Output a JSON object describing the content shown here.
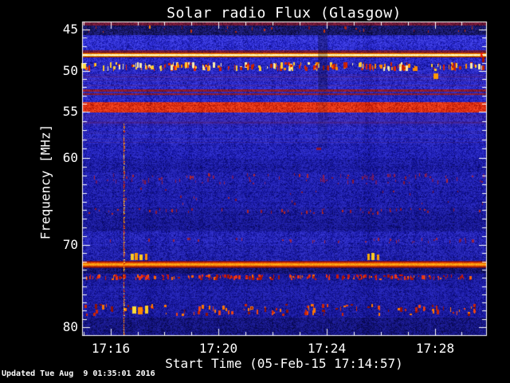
{
  "window": {
    "background": "#000000",
    "foreground": "#ffffff"
  },
  "footer": {
    "updated": "Updated Tue Aug  9 01:35:01 2016"
  },
  "chart_data": {
    "type": "heatmap",
    "title": "Solar radio Flux (Glasgow)",
    "xlabel": "Start Time (05-Feb-15 17:14:57)",
    "ylabel": "Frequency [MHz]",
    "observatory": "Glasgow",
    "time_axis": {
      "date": "05-Feb-15",
      "start": "17:14:57",
      "total_seconds": 897,
      "minor_tick_seconds": 60
    },
    "x_ticks": [
      {
        "label": "17:16",
        "sec": 63
      },
      {
        "label": "17:20",
        "sec": 303
      },
      {
        "label": "17:24",
        "sec": 543
      },
      {
        "label": "17:28",
        "sec": 783
      }
    ],
    "y_ticks": [
      45,
      50,
      55,
      60,
      70,
      80
    ],
    "y_minor_mhz": 1,
    "y_map": [
      [
        44.1,
        27
      ],
      [
        45,
        37
      ],
      [
        50,
        89
      ],
      [
        55,
        140
      ],
      [
        60,
        198
      ],
      [
        70,
        307
      ],
      [
        80,
        410
      ],
      [
        81,
        420
      ]
    ],
    "axis_color": "#ffffff",
    "zones": [
      {
        "f0": 44.0,
        "f1": 44.55,
        "style": "noise",
        "base": "#4e0e2a",
        "hi": "#8a2040",
        "dark": "#160408"
      },
      {
        "f0": 44.55,
        "f1": 45.65,
        "style": "noise",
        "base": "#0a0a40",
        "hi": "#24248c",
        "dark": "#020210"
      },
      {
        "f0": 45.65,
        "f1": 47.5,
        "style": "noise",
        "base": "#1818b6",
        "hi": "#4444ea",
        "dark": "#060634"
      },
      {
        "f0": 47.5,
        "f1": 47.82,
        "style": "noise",
        "base": "#5a1232",
        "hi": "#8c2440",
        "dark": "#1a1048"
      },
      {
        "f0": 47.82,
        "f1": 48.38,
        "style": "line",
        "stops": [
          "#b33000",
          "#ff9900",
          "#fffdd8",
          "#fffab8",
          "#ff9900",
          "#7a1208"
        ]
      },
      {
        "f0": 48.38,
        "f1": 48.92,
        "style": "noise",
        "base": "#1414ac",
        "hi": "#3c3ce2",
        "dark": "#060630"
      },
      {
        "f0": 48.92,
        "f1": 50.15,
        "style": "noise",
        "base": "#1212a4",
        "hi": "#3a3ada",
        "dark": "#05052a"
      },
      {
        "f0": 50.15,
        "f1": 52.25,
        "style": "noise",
        "base": "#1616b2",
        "hi": "#4040e6",
        "dark": "#060630",
        "stripe": "#6e1230",
        "stripe_strength": 0.3
      },
      {
        "f0": 52.25,
        "f1": 53.1,
        "style": "maroon",
        "base": "#741228",
        "hi": "#a02438",
        "dark": "#3c0a18",
        "base2": "#1c1694",
        "hi2": "#3a36cc",
        "dark2": "#0a0a40"
      },
      {
        "f0": 53.1,
        "f1": 53.78,
        "style": "noise",
        "base": "#1414ae",
        "hi": "#3a3ade",
        "dark": "#050528"
      },
      {
        "f0": 53.78,
        "f1": 55.1,
        "style": "noise",
        "base": "#c41a06",
        "hi": "#f64822",
        "dark": "#6e0a06"
      },
      {
        "f0": 55.1,
        "f1": 56.35,
        "style": "noise",
        "base": "#1616b0",
        "hi": "#3e3ee2",
        "dark": "#060630",
        "stripe": "#74142e",
        "stripe_strength": 0.35
      },
      {
        "f0": 56.35,
        "f1": 58.45,
        "style": "noise",
        "base": "#1414aa",
        "hi": "#3a3ad8",
        "dark": "#05052a",
        "stripe": "#5c1226",
        "stripe_strength": 0.25
      },
      {
        "f0": 58.45,
        "f1": 60.05,
        "style": "noise",
        "base": "#10109c",
        "hi": "#3232d0",
        "dark": "#040422"
      },
      {
        "f0": 60.05,
        "f1": 61.65,
        "style": "noise",
        "base": "#0d0d8a",
        "hi": "#2a2abe",
        "dark": "#04041a"
      },
      {
        "f0": 61.65,
        "f1": 63.25,
        "style": "noise",
        "base": "#0f0f94",
        "hi": "#2e2ec6",
        "dark": "#040420"
      },
      {
        "f0": 63.25,
        "f1": 65.65,
        "style": "noise",
        "base": "#0e0e90",
        "hi": "#2c2cc2",
        "dark": "#03031c"
      },
      {
        "f0": 65.65,
        "f1": 67.05,
        "style": "noise",
        "base": "#0c0c82",
        "hi": "#2828b6",
        "dark": "#030318"
      },
      {
        "f0": 67.05,
        "f1": 68.45,
        "style": "noise",
        "base": "#0b0b7a",
        "hi": "#2424ae",
        "dark": "#030314"
      },
      {
        "f0": 68.45,
        "f1": 70.05,
        "style": "noise",
        "base": "#10109a",
        "hi": "#3434ce",
        "dark": "#040424"
      },
      {
        "f0": 70.05,
        "f1": 71.9,
        "style": "noise",
        "base": "#0f0f92",
        "hi": "#3030c4",
        "dark": "#040420"
      },
      {
        "f0": 71.9,
        "f1": 72.78,
        "style": "line",
        "stops": [
          "#6e1026",
          "#cc2200",
          "#ff8800",
          "#ffaa22",
          "#ff7700",
          "#b01a00",
          "#581026"
        ]
      },
      {
        "f0": 72.78,
        "f1": 73.5,
        "style": "noise",
        "base": "#08084e",
        "hi": "#1e1e94",
        "dark": "#020212"
      },
      {
        "f0": 73.5,
        "f1": 74.45,
        "style": "noise",
        "base": "#0d0d84",
        "hi": "#2626b2",
        "dark": "#030316"
      },
      {
        "f0": 74.45,
        "f1": 77.15,
        "style": "noise",
        "base": "#0e0e8a",
        "hi": "#2a2abe",
        "dark": "#03031a"
      },
      {
        "f0": 77.15,
        "f1": 78.85,
        "style": "noise",
        "base": "#0d0d86",
        "hi": "#2828ba",
        "dark": "#030318"
      },
      {
        "f0": 78.85,
        "f1": 81.1,
        "style": "noise",
        "base": "#0a0a62",
        "hi": "#20209e",
        "dark": "#020212"
      }
    ],
    "speckle_rows": [
      {
        "f0": 44.6,
        "f1": 45.45,
        "count": 26,
        "colors": [
          "#78122a",
          "#a82414",
          "#c43410"
        ],
        "w": [
          1,
          2
        ],
        "h": [
          2,
          4
        ]
      },
      {
        "f0": 48.95,
        "f1": 50.1,
        "count": 210,
        "colors": [
          "#ffcc33",
          "#ff8800",
          "#dd2200",
          "#ffeeaa",
          "#c42200"
        ],
        "w": [
          1,
          3
        ],
        "h": [
          3,
          7
        ]
      },
      {
        "f0": 61.75,
        "f1": 63.15,
        "count": 95,
        "colors": [
          "#84163a",
          "#a82434",
          "#68186a",
          "#8c1c50"
        ],
        "w": [
          1,
          2
        ],
        "h": [
          2,
          5
        ]
      },
      {
        "f0": 63.3,
        "f1": 65.5,
        "count": 22,
        "colors": [
          "#7c1430",
          "#962036"
        ],
        "w": [
          1,
          2
        ],
        "h": [
          2,
          3
        ]
      },
      {
        "f0": 65.75,
        "f1": 66.6,
        "count": 48,
        "colors": [
          "#8c1630",
          "#b22424"
        ],
        "w": [
          1,
          2
        ],
        "h": [
          2,
          4
        ]
      },
      {
        "f0": 69.15,
        "f1": 69.95,
        "count": 38,
        "colors": [
          "#70164a",
          "#9a2242"
        ],
        "w": [
          1,
          2
        ],
        "h": [
          2,
          4
        ]
      },
      {
        "f0": 73.55,
        "f1": 74.35,
        "count": 175,
        "colors": [
          "#cc1805",
          "#ee3312",
          "#a81406",
          "#ff6600"
        ],
        "w": [
          1,
          3
        ],
        "h": [
          2,
          5
        ]
      },
      {
        "f0": 77.2,
        "f1": 78.7,
        "count": 115,
        "colors": [
          "#cc2406",
          "#ee4412",
          "#ff7700",
          "#8e1206"
        ],
        "w": [
          1,
          3
        ],
        "h": [
          2,
          6
        ]
      }
    ],
    "features": {
      "vertical_streak": {
        "sec": 92,
        "f0": 56.2,
        "f1": 81.0,
        "colors": [
          "#ff7700",
          "#dd3300",
          "#ffaa00",
          "#cc2200",
          "#ffdd55"
        ]
      },
      "dark_column": {
        "sec0": 523,
        "sec1": 545,
        "f0": 45.6,
        "f1": 52.3,
        "alpha": 0.28,
        "f1_faint": 59.0,
        "alpha_faint": 0.1
      },
      "blobs": [
        {
          "sec": 3,
          "f": 49.35,
          "w": 6,
          "h": 7,
          "color": "#ffdd44"
        },
        {
          "sec": 150,
          "f": 44.7,
          "w": 2,
          "h": 4,
          "color": "#ff8800"
        },
        {
          "sec": 785,
          "f": 50.65,
          "w": 6,
          "h": 7,
          "color": "#ff9900"
        },
        {
          "sec": 525,
          "f": 59.0,
          "w": 6,
          "h": 3,
          "color": "#8c1430"
        },
        {
          "sec": 111,
          "f": 71.45,
          "w": 4,
          "h": 8,
          "color": "#ffcc22"
        },
        {
          "sec": 121,
          "f": 71.4,
          "w": 4,
          "h": 9,
          "color": "#ff9900"
        },
        {
          "sec": 131,
          "f": 71.5,
          "w": 4,
          "h": 7,
          "color": "#ffcc22"
        },
        {
          "sec": 143,
          "f": 71.45,
          "w": 3,
          "h": 8,
          "color": "#ff8800"
        },
        {
          "sec": 636,
          "f": 71.45,
          "w": 3,
          "h": 8,
          "color": "#ffaa00"
        },
        {
          "sec": 646,
          "f": 71.4,
          "w": 4,
          "h": 9,
          "color": "#ffcc22"
        },
        {
          "sec": 657,
          "f": 71.5,
          "w": 3,
          "h": 7,
          "color": "#ff9900"
        },
        {
          "sec": 116,
          "f": 77.9,
          "w": 5,
          "h": 9,
          "color": "#ffdd33"
        },
        {
          "sec": 130,
          "f": 78.0,
          "w": 6,
          "h": 9,
          "color": "#ff8800"
        },
        {
          "sec": 144,
          "f": 77.9,
          "w": 4,
          "h": 10,
          "color": "#ffcc22"
        },
        {
          "sec": 888,
          "f": 48.1,
          "w": 3,
          "h": 6,
          "color": "#ee2200"
        },
        {
          "sec": 890,
          "f": 48.6,
          "w": 3,
          "h": 7,
          "color": "#aa1100"
        }
      ]
    }
  }
}
